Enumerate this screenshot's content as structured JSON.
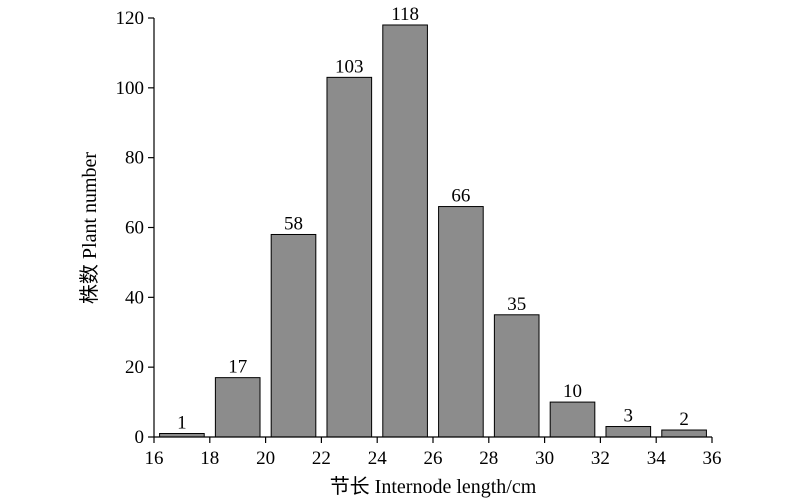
{
  "chart_data": {
    "type": "bar",
    "title": "",
    "xlabel": "节长 Internode length/cm",
    "ylabel": "株数 Plant number",
    "bin_edges": [
      16,
      18,
      20,
      22,
      24,
      26,
      28,
      30,
      32,
      34,
      36
    ],
    "values": [
      1,
      17,
      58,
      103,
      118,
      66,
      35,
      10,
      3,
      2
    ],
    "xlim": [
      16,
      36
    ],
    "ylim": [
      0,
      120
    ],
    "x_ticks": [
      "16",
      "18",
      "20",
      "22",
      "24",
      "26",
      "28",
      "30",
      "32",
      "34",
      "36"
    ],
    "y_ticks": [
      "0",
      "20",
      "40",
      "60",
      "80",
      "100",
      "120"
    ],
    "bar_color": "#8c8c8c",
    "grid": false,
    "legend": "none"
  }
}
